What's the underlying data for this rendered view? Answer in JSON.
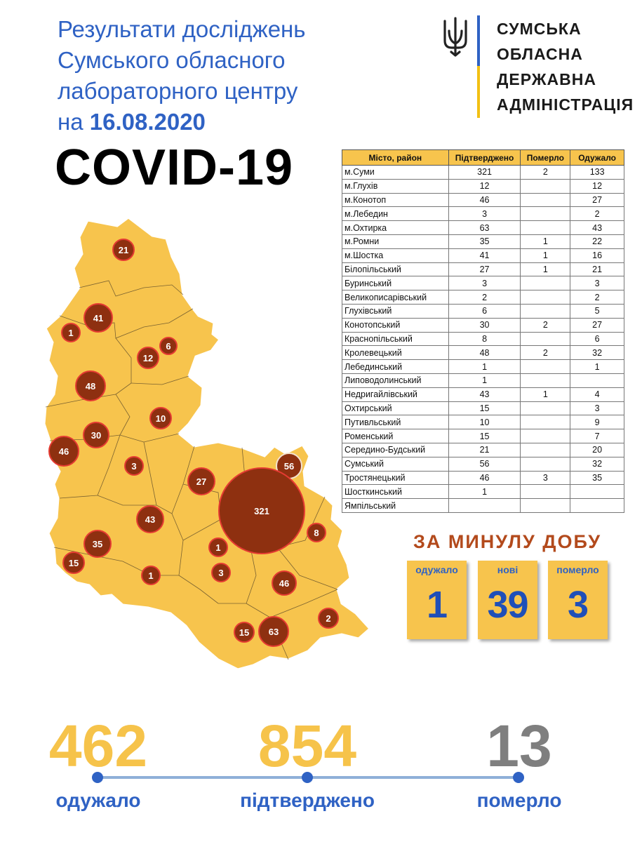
{
  "header": {
    "line1": "Результати досліджень",
    "line2": "Сумського обласного",
    "line3": "лабораторного центру",
    "line4_prefix": "на ",
    "line4_date": "16.08.2020",
    "covid": "COVID-19"
  },
  "org": {
    "line1": "СУМСЬКА",
    "line2": "ОБЛАСНА",
    "line3": "ДЕРЖАВНА",
    "line4": "АДМІНІСТРАЦІЯ",
    "icon": "trident-icon",
    "colors": {
      "blue": "#2f62c4",
      "yellow": "#f2c014"
    }
  },
  "table": {
    "headers": [
      "Місто, район",
      "Підтверджено",
      "Померло",
      "Одужало"
    ],
    "rows": [
      [
        "м.Суми",
        "321",
        "2",
        "133"
      ],
      [
        "м.Глухів",
        "12",
        "",
        "12"
      ],
      [
        "м.Конотоп",
        "46",
        "",
        "27"
      ],
      [
        "м.Лебедин",
        "3",
        "",
        "2"
      ],
      [
        "м.Охтирка",
        "63",
        "",
        "43"
      ],
      [
        "м.Ромни",
        "35",
        "1",
        "22"
      ],
      [
        "м.Шостка",
        "41",
        "1",
        "16"
      ],
      [
        "Білопільський",
        "27",
        "1",
        "21"
      ],
      [
        "Буринський",
        "3",
        "",
        "3"
      ],
      [
        "Великописарівський",
        "2",
        "",
        "2"
      ],
      [
        "Глухівський",
        "6",
        "",
        "5"
      ],
      [
        "Конотопський",
        "30",
        "2",
        "27"
      ],
      [
        "Краснопільський",
        "8",
        "",
        "6"
      ],
      [
        "Кролевецький",
        "48",
        "2",
        "32"
      ],
      [
        "Лебединський",
        "1",
        "",
        "1"
      ],
      [
        "Липоводолинський",
        "1",
        "",
        ""
      ],
      [
        "Недригайлівський",
        "43",
        "1",
        "4"
      ],
      [
        "Охтирський",
        "15",
        "",
        "3"
      ],
      [
        "Путивльський",
        "10",
        "",
        "9"
      ],
      [
        "Роменський",
        "15",
        "",
        "7"
      ],
      [
        "Середино-Будський",
        "21",
        "",
        "20"
      ],
      [
        "Сумський",
        "56",
        "",
        "32"
      ],
      [
        "Тростянецький",
        "46",
        "3",
        "35"
      ],
      [
        "Шосткинський",
        "1",
        "",
        ""
      ],
      [
        "Ямпільський",
        "",
        "",
        ""
      ]
    ]
  },
  "map": {
    "fill_color": "#f7c44d",
    "bubble_color": "#8e3010",
    "bubbles": [
      "21",
      "41",
      "1",
      "6",
      "12",
      "48",
      "10",
      "30",
      "46",
      "3",
      "27",
      "56",
      "321",
      "43",
      "8",
      "35",
      "1",
      "15",
      "1",
      "3",
      "46",
      "2",
      "15",
      "63"
    ]
  },
  "day": {
    "title": "ЗА МИНУЛУ ДОБУ",
    "recovered_label": "одужало",
    "recovered": "1",
    "new_label": "нові",
    "new": "39",
    "died_label": "померло",
    "died": "3"
  },
  "totals": {
    "recovered": "462",
    "recovered_label": "одужало",
    "confirmed": "854",
    "confirmed_label": "підтверджено",
    "died": "13",
    "died_label": "померло",
    "colors": {
      "recovered": "#f6c34a",
      "confirmed": "#f6c34a",
      "died": "#7f7f7f"
    }
  }
}
